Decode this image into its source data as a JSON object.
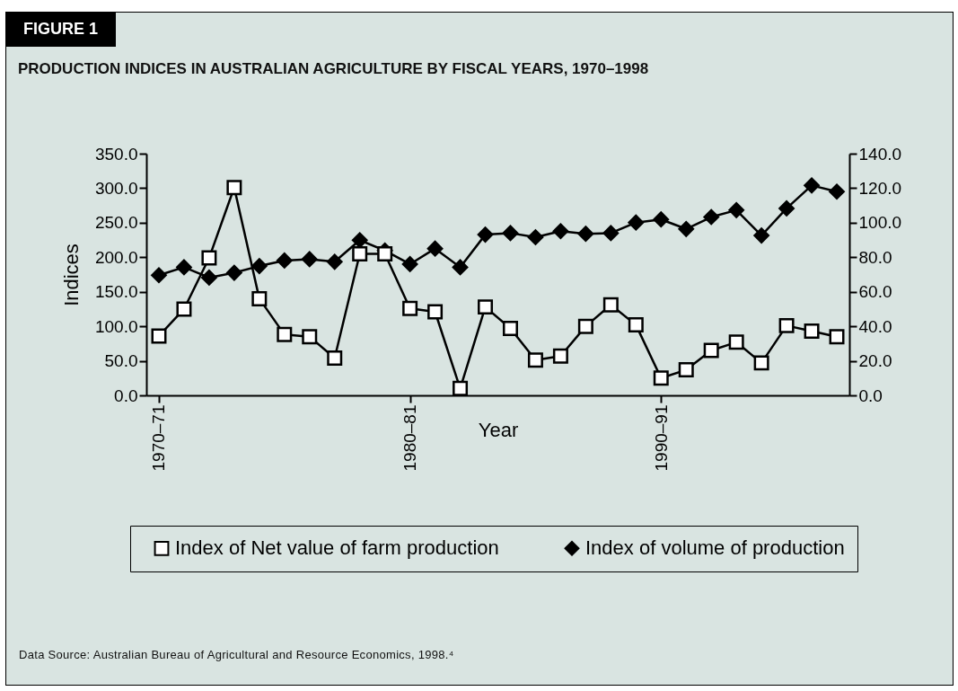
{
  "chart_data": {
    "type": "line",
    "title": "PRODUCTION INDICES IN AUSTRALIAN AGRICULTURE BY FISCAL YEARS, 1970–1998",
    "xlabel": "Year",
    "ylabel": "Indices",
    "annotations": [
      "FIGURE 1",
      "Data Source: Australian Bureau of Agricultural and Resource Economics, 1998.⁴"
    ],
    "categories": [
      "1970–71",
      null,
      null,
      null,
      null,
      null,
      null,
      null,
      null,
      null,
      "1980–81",
      null,
      null,
      null,
      null,
      null,
      null,
      null,
      null,
      null,
      "1990–91",
      null,
      null,
      null,
      null,
      null,
      null,
      null
    ],
    "series": [
      {
        "name": "Index of Net value of farm production",
        "color": "#000000",
        "marker": "square",
        "values": [
          86,
          125,
          199,
          301,
          140,
          88,
          85,
          54,
          205,
          205,
          126,
          121,
          10,
          128,
          97,
          51,
          57,
          100,
          131,
          102,
          25,
          37,
          65,
          77,
          47,
          101,
          93,
          85
        ]
      },
      {
        "name": "Index of volume of production",
        "color": "#000000",
        "marker": "diamond",
        "axis": "y2",
        "values": [
          69.6,
          74.2,
          68.2,
          71,
          74.9,
          78.1,
          78.9,
          77.4,
          89.9,
          83.9,
          76,
          85,
          74.2,
          93.1,
          94,
          91.6,
          95.1,
          93.6,
          94,
          100.1,
          101.9,
          96.4,
          103.3,
          107.3,
          92.6,
          108.3,
          121.6,
          118
        ]
      }
    ],
    "ylim": [
      0,
      350
    ],
    "yticks": [
      {
        "value": 0,
        "label": "0.0"
      },
      {
        "value": 50,
        "label": "50.0"
      },
      {
        "value": 100,
        "label": "100.0"
      },
      {
        "value": 150,
        "label": "150.0"
      },
      {
        "value": 200,
        "label": "200.0"
      },
      {
        "value": 250,
        "label": "250.0"
      },
      {
        "value": 300,
        "label": "300.0"
      },
      {
        "value": 350,
        "label": "350.0"
      }
    ],
    "y2lim": [
      0,
      140
    ],
    "y2ticks": [
      {
        "value": 0,
        "label": "0.0"
      },
      {
        "value": 20,
        "label": "20.0"
      },
      {
        "value": 40,
        "label": "40.0"
      },
      {
        "value": 60,
        "label": "60.0"
      },
      {
        "value": 80,
        "label": "80.0"
      },
      {
        "value": 100,
        "label": "100.0"
      },
      {
        "value": 120,
        "label": "120.0"
      },
      {
        "value": 140,
        "label": "140.0"
      }
    ],
    "legend": "bottom",
    "line_style": "solid"
  }
}
